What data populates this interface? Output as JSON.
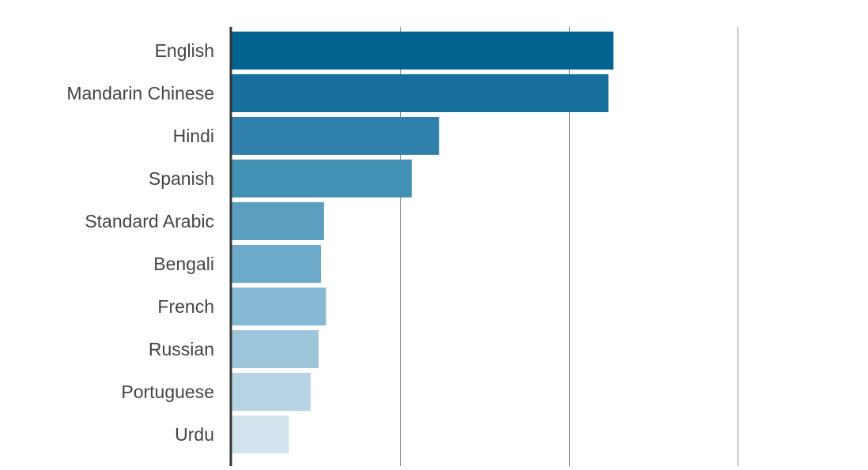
{
  "chart_data": {
    "type": "bar",
    "orientation": "horizontal",
    "categories": [
      "English",
      "Mandarin Chinese",
      "Hindi",
      "Spanish",
      "Standard Arabic",
      "Bengali",
      "French",
      "Russian",
      "Portuguese",
      "Urdu"
    ],
    "values": [
      1.132,
      1.117,
      0.615,
      0.534,
      0.274,
      0.265,
      0.28,
      0.258,
      0.234,
      0.17
    ],
    "xlim": [
      0,
      1.5
    ],
    "gridlines": [
      0.5,
      1.0,
      1.5
    ],
    "grid": true,
    "legend": "none",
    "colors": [
      "#01628f",
      "#176f9e",
      "#2f80ab",
      "#4390b5",
      "#5b9fc0",
      "#6eaac9",
      "#86b9d3",
      "#9ec6da",
      "#b6d4e3",
      "#d1e4ed"
    ],
    "label_color": "#444444",
    "axis_color": "#333333",
    "grid_color": "#888888"
  }
}
